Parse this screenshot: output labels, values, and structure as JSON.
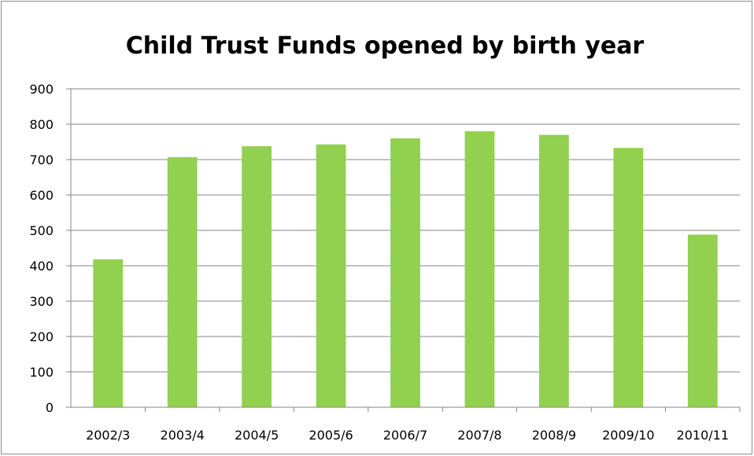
{
  "chart_data": {
    "type": "bar",
    "title": "Child Trust Funds opened by birth year",
    "xlabel": "",
    "ylabel": "",
    "categories": [
      "2002/3",
      "2003/4",
      "2004/5",
      "2005/6",
      "2006/7",
      "2007/8",
      "2008/9",
      "2009/10",
      "2010/11"
    ],
    "values": [
      418,
      707,
      738,
      743,
      760,
      780,
      770,
      733,
      488
    ],
    "ylim": [
      0,
      900
    ],
    "yticks": [
      "0",
      "100",
      "200",
      "300",
      "400",
      "500",
      "600",
      "700",
      "800",
      "900"
    ],
    "grid": true,
    "legend": "none",
    "bar_color": "#92d050"
  }
}
